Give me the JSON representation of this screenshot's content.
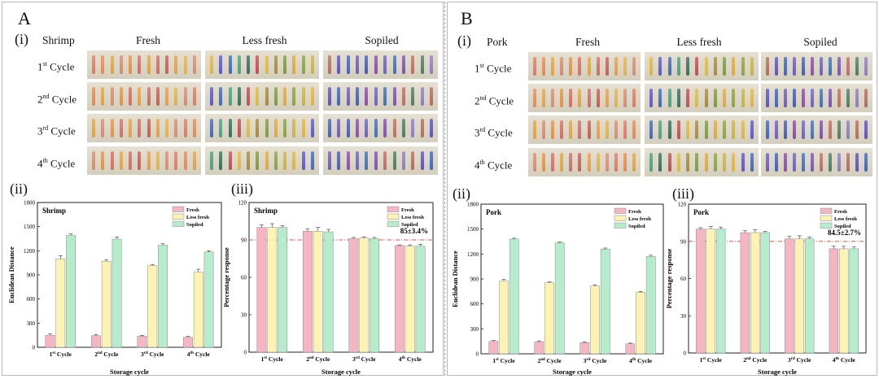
{
  "panels": [
    {
      "letter": "A",
      "sub": "(i)",
      "sample": "Shrimp",
      "cols": [
        "Fresh",
        "Less fresh",
        "Sopiled"
      ],
      "rows": [
        [
          "1",
          "st",
          " Cycle"
        ],
        [
          "2",
          "nd",
          " Cycle"
        ],
        [
          "3",
          "rd",
          " Cycle"
        ],
        [
          "4",
          "th",
          " Cycle"
        ]
      ],
      "sub2": "(ii)",
      "sub3": "(iii)"
    },
    {
      "letter": "B",
      "sub": "(i)",
      "sample": "Pork",
      "cols": [
        "Fresh",
        "Less fresh",
        "Sopiled"
      ],
      "rows": [
        [
          "1",
          "st",
          " Cycle"
        ],
        [
          "2",
          "nd",
          " Cycle"
        ],
        [
          "3",
          "rd",
          " Cycle"
        ],
        [
          "4",
          "th",
          " Cycle"
        ]
      ],
      "sub2": "(ii)",
      "sub3": "(iii)"
    }
  ],
  "strip_colors": {
    "fresh": [
      "#e07a5f",
      "#e8894e",
      "#e4a23d",
      "#d98a6a",
      "#e6913e",
      "#d96b5c",
      "#e4a33a",
      "#cd6d62",
      "#c45e4e",
      "#e89c48",
      "#e3b24a",
      "#d88c70"
    ],
    "less": [
      "#e3b43a",
      "#5a55c8",
      "#3e67b8",
      "#4aa07a",
      "#2f6f5a",
      "#c24a4e",
      "#e1b93b",
      "#a58a3a",
      "#7d9a3a",
      "#e0a93a",
      "#8aa23c",
      "#c9b440"
    ],
    "spoiled": [
      "#b46a5a",
      "#5b4fc0",
      "#3a62c0",
      "#6f59b8",
      "#3f5bb6",
      "#8a4aa8",
      "#6b61c0",
      "#3d6fb8",
      "#7c4fb0",
      "#bf6c5e",
      "#4f7a5e",
      "#8a7dbf"
    ]
  },
  "chart_data": [
    {
      "type": "bar",
      "title": "Shrimp",
      "xlabel": "Storage cycle",
      "ylabel": "Euclidean Distance",
      "categories": [
        "1st Cycle",
        "2nd Cycle",
        "3rd Cycle",
        "4th Cycle"
      ],
      "ylim": [
        0,
        1800
      ],
      "yticks": [
        0,
        300,
        600,
        900,
        1200,
        1500,
        1800
      ],
      "series": [
        {
          "name": "Fresh",
          "values": [
            150,
            145,
            138,
            125
          ],
          "err": [
            15,
            12,
            10,
            10
          ],
          "color": "#f4b6c2"
        },
        {
          "name": "Less fresh",
          "values": [
            1100,
            1070,
            1015,
            935
          ],
          "err": [
            40,
            20,
            15,
            35
          ],
          "color": "#fbf2b4"
        },
        {
          "name": "Sopiled",
          "values": [
            1390,
            1345,
            1270,
            1185
          ],
          "err": [
            20,
            25,
            18,
            15
          ],
          "color": "#b6eccb"
        }
      ],
      "legend": "top-right"
    },
    {
      "type": "bar",
      "title": "Shrimp",
      "xlabel": "Storage cycle",
      "ylabel": "Percentage response",
      "categories": [
        "1st Cycle",
        "2nd Cycle",
        "3rd Cycle",
        "4th Cycle"
      ],
      "ylim": [
        0,
        120
      ],
      "yticks": [
        0,
        30,
        60,
        90,
        120
      ],
      "refline": 90,
      "annotation": "85±3.4%",
      "series": [
        {
          "name": "Fresh",
          "values": [
            100,
            97,
            91,
            85.5
          ],
          "err": [
            2,
            2,
            1,
            0.5
          ],
          "color": "#f4b6c2"
        },
        {
          "name": "Less fresh",
          "values": [
            100,
            97,
            91.5,
            85
          ],
          "err": [
            3,
            3,
            1,
            1
          ],
          "color": "#fbf2b4"
        },
        {
          "name": "Sopiled",
          "values": [
            100,
            96.5,
            91,
            85
          ],
          "err": [
            1.5,
            2,
            1,
            1.5
          ],
          "color": "#b6eccb"
        }
      ],
      "legend": "top-right"
    },
    {
      "type": "bar",
      "title": "Pork",
      "xlabel": "Storage cycle",
      "ylabel": "Euclidean Distance",
      "categories": [
        "1st Cycle",
        "2nd Cycle",
        "3rd Cycle",
        "4th Cycle"
      ],
      "ylim": [
        0,
        1800
      ],
      "yticks": [
        0,
        300,
        600,
        900,
        1200,
        1500,
        1800
      ],
      "series": [
        {
          "name": "Fresh",
          "values": [
            150,
            145,
            135,
            120
          ],
          "err": [
            10,
            10,
            8,
            8
          ],
          "color": "#f4b6c2"
        },
        {
          "name": "Less fresh",
          "values": [
            875,
            855,
            815,
            740
          ],
          "err": [
            20,
            10,
            15,
            10
          ],
          "color": "#fbf2b4"
        },
        {
          "name": "Sopiled",
          "values": [
            1380,
            1335,
            1260,
            1170
          ],
          "err": [
            10,
            10,
            12,
            15
          ],
          "color": "#b6eccb"
        }
      ],
      "legend": "top-right"
    },
    {
      "type": "bar",
      "title": "Pork",
      "xlabel": "Storage cycle",
      "ylabel": "Percentage response",
      "categories": [
        "1st Cycle",
        "2nd Cycle",
        "3rd Cycle",
        "4th Cycle"
      ],
      "ylim": [
        0,
        120
      ],
      "yticks": [
        0,
        30,
        60,
        90,
        120
      ],
      "refline": 90,
      "annotation": "84.5±2.7%",
      "series": [
        {
          "name": "Fresh",
          "values": [
            100,
            97,
            92,
            84
          ],
          "err": [
            1,
            1.5,
            2,
            2
          ],
          "color": "#f4b6c2"
        },
        {
          "name": "Less fresh",
          "values": [
            100,
            97,
            92,
            84
          ],
          "err": [
            2,
            2.5,
            2.5,
            2
          ],
          "color": "#fbf2b4"
        },
        {
          "name": "Sopiled",
          "values": [
            100,
            97,
            92,
            84
          ],
          "err": [
            1.5,
            1,
            1.5,
            1.5
          ],
          "color": "#b6eccb"
        }
      ],
      "legend": "top-right"
    }
  ]
}
